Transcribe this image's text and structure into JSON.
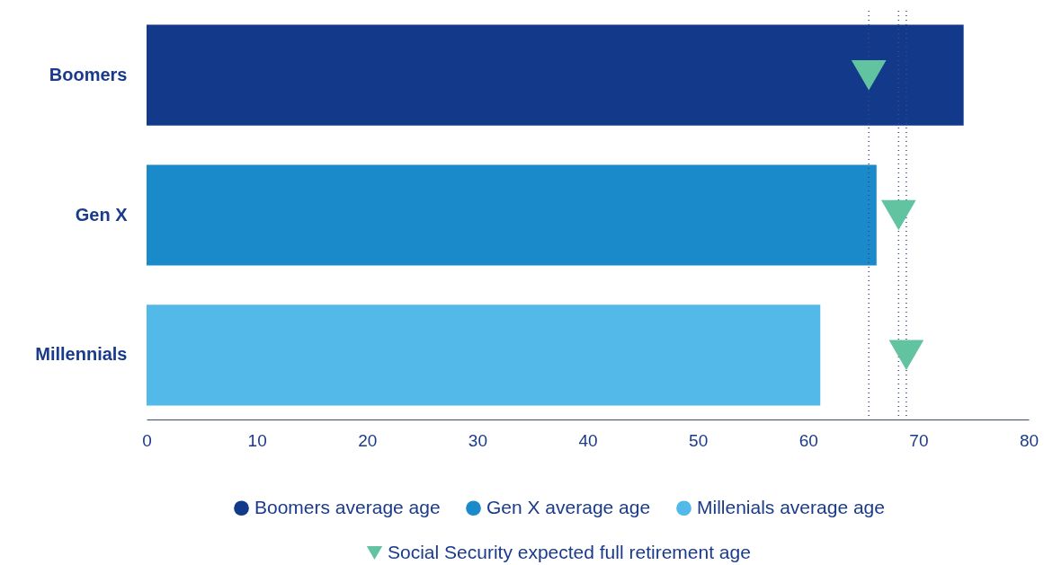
{
  "chart_data": {
    "type": "bar",
    "orientation": "horizontal",
    "categories": [
      "Boomers",
      "Gen X",
      "Millennials"
    ],
    "series": [
      {
        "name": "Boomers average age",
        "color": "#133a8a",
        "values": [
          74.1,
          null,
          null
        ]
      },
      {
        "name": "Gen X average age",
        "color": "#1b8aca",
        "values": [
          null,
          66.2,
          null
        ]
      },
      {
        "name": "Millenials average age",
        "color": "#52b9e8",
        "values": [
          null,
          null,
          61.1
        ]
      },
      {
        "name": "Social Security expected full retirement age",
        "type": "scatter",
        "marker": "triangle",
        "color": "#62c3a1",
        "values": [
          65.5,
          68.2,
          68.9
        ]
      }
    ],
    "ref_lines": [
      {
        "axis": "x",
        "value": 65.5,
        "color": "#3a4a8a",
        "line_style": "dotted"
      },
      {
        "axis": "x",
        "value": 68.2,
        "color": "#3a4a8a",
        "line_style": "dotted"
      },
      {
        "axis": "x",
        "value": 68.9,
        "color": "#3a4a8a",
        "line_style": "dotted"
      }
    ],
    "xlim": [
      0,
      80
    ],
    "xticks": [
      0,
      10,
      20,
      30,
      40,
      50,
      60,
      70,
      80
    ],
    "grid": false,
    "legend": "bottom"
  }
}
